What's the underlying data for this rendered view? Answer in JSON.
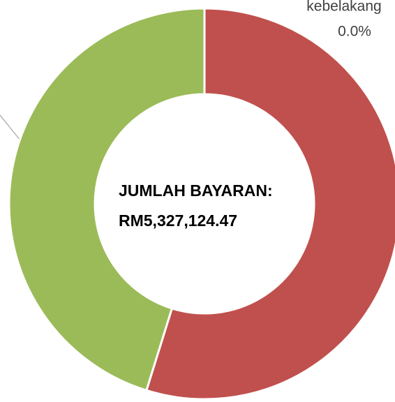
{
  "chart_data": {
    "type": "donut",
    "categories": [
      null,
      null,
      "kebelakang"
    ],
    "values": [
      54.8,
      45.2,
      0.0
    ],
    "value_labels": [
      null,
      null,
      "0.0%"
    ],
    "colors": [
      "#c0504d",
      "#9bbb59",
      "#4f81bd"
    ],
    "center_text": [
      "JUMLAH BAYARAN:",
      "RM5,327,124.47"
    ]
  }
}
